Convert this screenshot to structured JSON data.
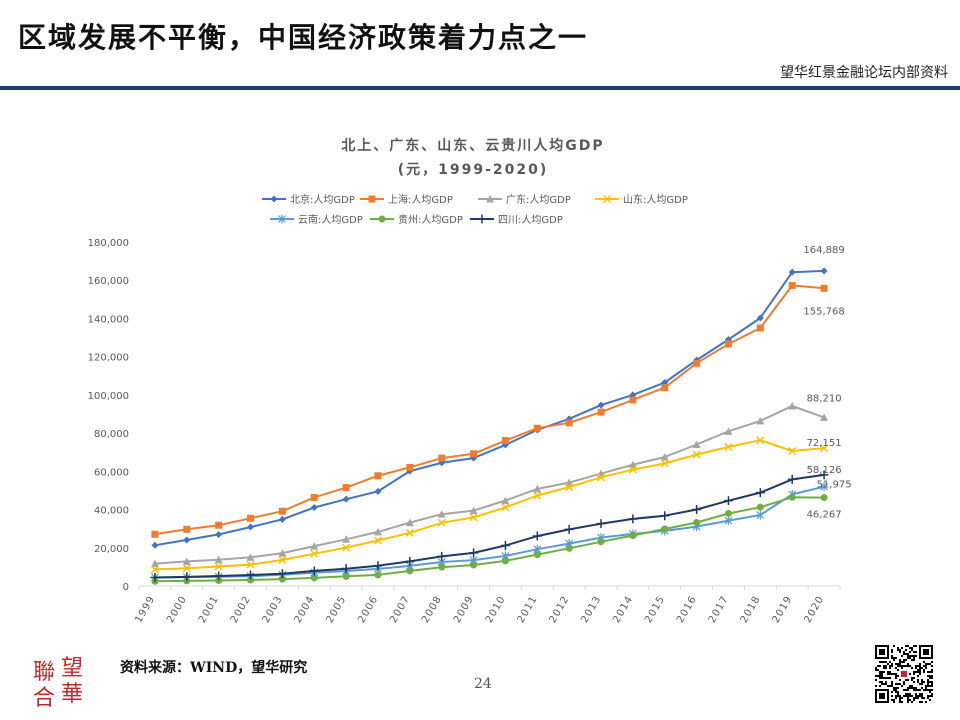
{
  "header": {
    "title": "区域发展不平衡，中国经济政策着力点之一",
    "subtitle": "望华红景金融论坛内部资料"
  },
  "footer": {
    "source": "资料来源：WIND，望华研究",
    "page_number": "24",
    "logo_chars": [
      "聯",
      "望",
      "合",
      "華"
    ]
  },
  "colors": {
    "rule": "#1f3d6e",
    "logo": "#c0282d"
  },
  "chart_data": {
    "type": "line",
    "title": "北上、广东、山东、云贵川人均GDP",
    "subtitle": "(元，1999-2020)",
    "x": [
      "1999",
      "2000",
      "2001",
      "2002",
      "2003",
      "2004",
      "2005",
      "2006",
      "2007",
      "2008",
      "2009",
      "2010",
      "2011",
      "2012",
      "2013",
      "2014",
      "2015",
      "2016",
      "2017",
      "2018",
      "2019",
      "2020"
    ],
    "ylim": [
      0,
      180000
    ],
    "yticks": [
      "0",
      "20,000",
      "40,000",
      "60,000",
      "80,000",
      "100,000",
      "120,000",
      "140,000",
      "160,000",
      "180,000"
    ],
    "grid": false,
    "legend_position": "top",
    "series": [
      {
        "name": "北京:人均GDP",
        "color": "#4472c4",
        "marker": "diamond",
        "values": [
          21300,
          24100,
          26980,
          30840,
          34890,
          41100,
          45444,
          49505,
          60096,
          64491,
          66940,
          73856,
          81658,
          87475,
          94648,
          99995,
          106497,
          118198,
          128994,
          140211,
          164220,
          164889
        ],
        "end_label": "164,889"
      },
      {
        "name": "上海:人均GDP",
        "color": "#ed7d31",
        "marker": "square",
        "values": [
          27070,
          29671,
          31799,
          35445,
          39128,
          46338,
          51474,
          57695,
          62040,
          66932,
          69164,
          76074,
          82560,
          85373,
          90993,
          97370,
          103796,
          116562,
          126634,
          134982,
          157279,
          155768
        ],
        "end_label": "155,768"
      },
      {
        "name": "广东:人均GDP",
        "color": "#a5a5a5",
        "marker": "triangle",
        "values": [
          11728,
          12885,
          13730,
          15030,
          17213,
          20876,
          24435,
          28332,
          33151,
          37589,
          39436,
          44736,
          50807,
          54095,
          58833,
          63469,
          67503,
          74016,
          80932,
          86412,
          94172,
          88210
        ],
        "end_label": "88,210"
      },
      {
        "name": "山东:人均GDP",
        "color": "#ffc000",
        "marker": "x",
        "values": [
          8673,
          9326,
          10195,
          11194,
          13661,
          16925,
          20096,
          23794,
          27807,
          33083,
          35894,
          41106,
          47335,
          51768,
          56885,
          60879,
          64168,
          68733,
          72807,
          76267,
          70653,
          72151
        ],
        "end_label": "72,151"
      },
      {
        "name": "云南:人均GDP",
        "color": "#5b9bd5",
        "marker": "star",
        "values": [
          4452,
          4637,
          4866,
          5179,
          5870,
          7012,
          7835,
          8970,
          10540,
          12570,
          13539,
          15752,
          19265,
          22195,
          25322,
          27264,
          28806,
          31093,
          34221,
          37136,
          47944,
          51975
        ],
        "end_label": "51,975"
      },
      {
        "name": "贵州:人均GDP",
        "color": "#70ad47",
        "marker": "circle",
        "values": [
          2475,
          2662,
          2895,
          3153,
          3603,
          4215,
          5052,
          5787,
          7878,
          9855,
          10971,
          13119,
          16413,
          19710,
          23151,
          26437,
          29847,
          33246,
          37956,
          41244,
          46433,
          46267
        ],
        "end_label": "46,267"
      },
      {
        "name": "四川:人均GDP",
        "color": "#203864",
        "marker": "plus",
        "values": [
          4452,
          4784,
          5250,
          5766,
          6418,
          7895,
          9060,
          10613,
          12893,
          15495,
          17339,
          21182,
          26133,
          29608,
          32617,
          35128,
          36775,
          40003,
          44651,
          48883,
          55774,
          58126
        ],
        "end_label": "58,126"
      }
    ]
  }
}
